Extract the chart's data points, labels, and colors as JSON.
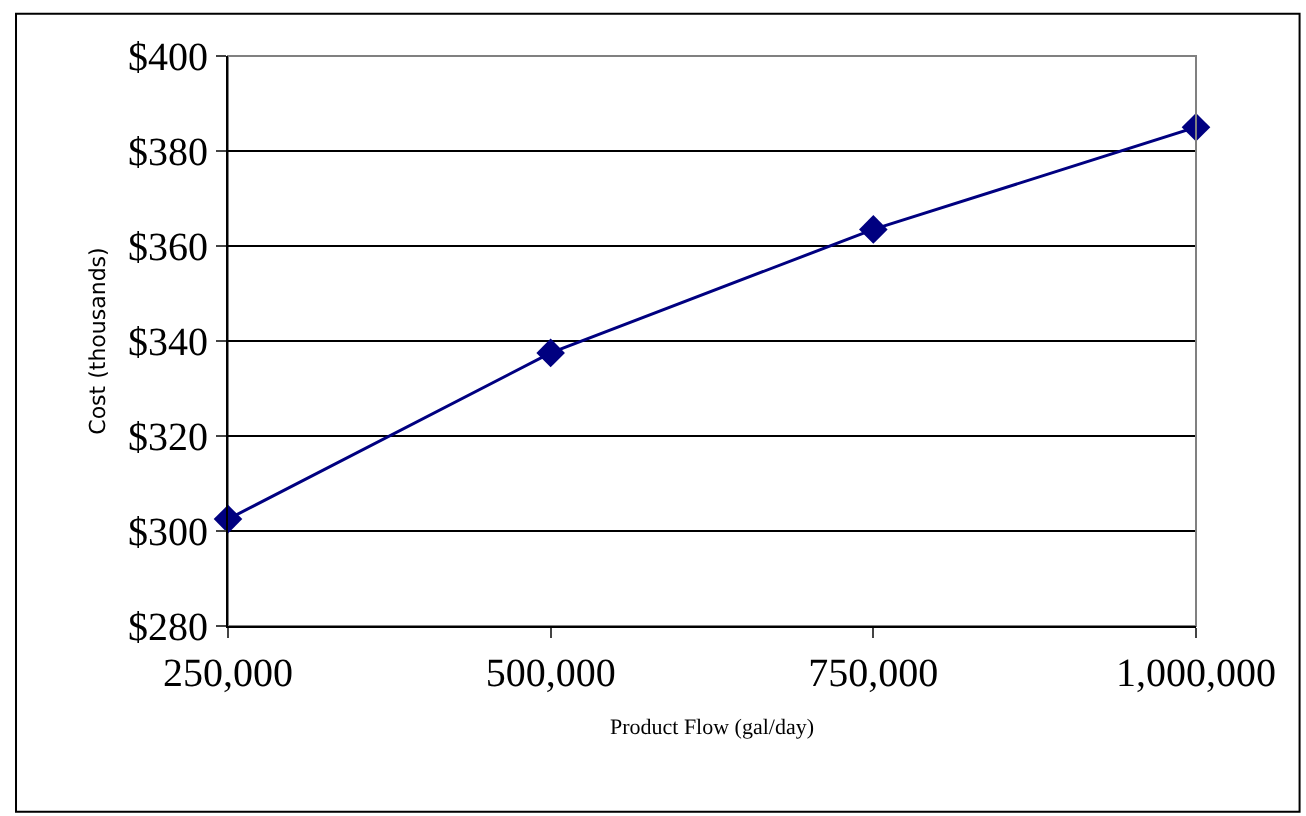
{
  "chart_data": {
    "type": "line",
    "xlabel": "Product Flow (gal/day)",
    "ylabel": "Cost (thousands)",
    "x": [
      250000,
      500000,
      750000,
      1000000
    ],
    "series": [
      {
        "color": "#000080",
        "values": [
          302.5,
          337.5,
          363.5,
          385
        ]
      }
    ],
    "xlim": [
      250000,
      1000000
    ],
    "xticks": [
      {
        "value": 250000,
        "label": "250,000"
      },
      {
        "value": 500000,
        "label": "500,000"
      },
      {
        "value": 750000,
        "label": "750,000"
      },
      {
        "value": 1000000,
        "label": "1,000,000"
      }
    ],
    "ylim": [
      280,
      400
    ],
    "yticks": [
      {
        "value": 280,
        "label": "$280"
      },
      {
        "value": 300,
        "label": "$300"
      },
      {
        "value": 320,
        "label": "$320"
      },
      {
        "value": 340,
        "label": "$340"
      },
      {
        "value": 360,
        "label": "$360"
      },
      {
        "value": 380,
        "label": "$380"
      },
      {
        "value": 400,
        "label": "$400"
      }
    ],
    "grid": "y",
    "marker": "diamond",
    "line_style": "solid"
  }
}
